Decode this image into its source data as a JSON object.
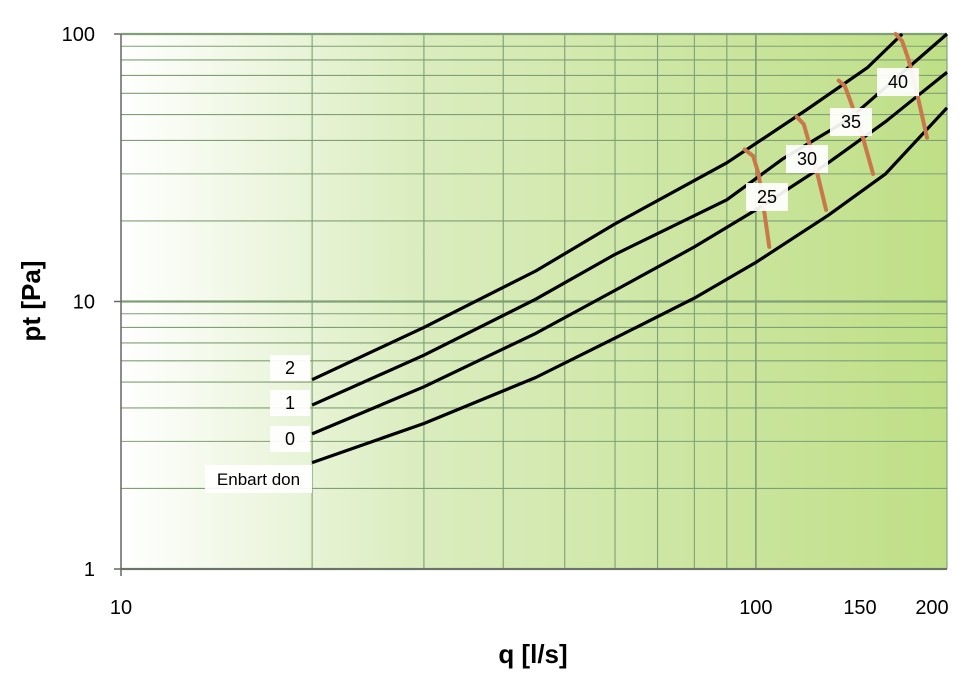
{
  "chart_data": {
    "type": "line",
    "xlabel": "q [l/s]",
    "ylabel": "pt [Pa]",
    "x_scale": "log",
    "y_scale": "log",
    "xlim": [
      10,
      200
    ],
    "ylim": [
      1,
      100
    ],
    "x_tick_labels": [
      "10",
      "100",
      "150",
      "200"
    ],
    "x_ticks": [
      10,
      100,
      150,
      200
    ],
    "y_tick_labels": [
      "1",
      "10",
      "100"
    ],
    "y_ticks": [
      1,
      10,
      100
    ],
    "grid": true,
    "background": "gradient white to green",
    "series": [
      {
        "name": "Enbart don",
        "color": "#000000",
        "points": [
          [
            20,
            2.5
          ],
          [
            30,
            3.5
          ],
          [
            45,
            5.2
          ],
          [
            60,
            7.3
          ],
          [
            80,
            10.3
          ],
          [
            100,
            14
          ],
          [
            130,
            21
          ],
          [
            160,
            30
          ],
          [
            200,
            53
          ]
        ]
      },
      {
        "name": "0",
        "color": "#000000",
        "points": [
          [
            20,
            3.2
          ],
          [
            30,
            4.8
          ],
          [
            45,
            7.6
          ],
          [
            60,
            11
          ],
          [
            80,
            16
          ],
          [
            100,
            22
          ],
          [
            130,
            33
          ],
          [
            160,
            47
          ],
          [
            200,
            72
          ]
        ]
      },
      {
        "name": "1",
        "color": "#000000",
        "points": [
          [
            20,
            4.1
          ],
          [
            30,
            6.3
          ],
          [
            45,
            10.2
          ],
          [
            60,
            15
          ],
          [
            90,
            24
          ],
          [
            110,
            34
          ],
          [
            140,
            48
          ],
          [
            200,
            100
          ]
        ]
      },
      {
        "name": "2",
        "color": "#000000",
        "points": [
          [
            20,
            5.1
          ],
          [
            30,
            8
          ],
          [
            45,
            13
          ],
          [
            60,
            19.5
          ],
          [
            90,
            33
          ],
          [
            120,
            52
          ],
          [
            150,
            75
          ],
          [
            170,
            100
          ]
        ]
      }
    ],
    "iso_curves": [
      {
        "label": "25",
        "color": "#c8784a",
        "points": [
          [
            96,
            37
          ],
          [
            99,
            35
          ],
          [
            101,
            30
          ],
          [
            103,
            22
          ],
          [
            105,
            16
          ]
        ]
      },
      {
        "label": "30",
        "color": "#c8784a",
        "points": [
          [
            116,
            49
          ],
          [
            119,
            46
          ],
          [
            121,
            40
          ],
          [
            125,
            30
          ],
          [
            129,
            22
          ]
        ]
      },
      {
        "label": "35",
        "color": "#c8784a",
        "points": [
          [
            135,
            67
          ],
          [
            138,
            64
          ],
          [
            141,
            56
          ],
          [
            147,
            42
          ],
          [
            153,
            30
          ]
        ]
      },
      {
        "label": "40",
        "color": "#c8784a",
        "points": [
          [
            166,
            100
          ],
          [
            170,
            94
          ],
          [
            174,
            80
          ],
          [
            180,
            58
          ],
          [
            186,
            41
          ]
        ]
      }
    ],
    "colors": {
      "gradient_start": "#ffffff",
      "gradient_end": "#bfdf86",
      "grid": "#7f9f74",
      "curve": "#000000",
      "iso": "#c8784a"
    }
  }
}
